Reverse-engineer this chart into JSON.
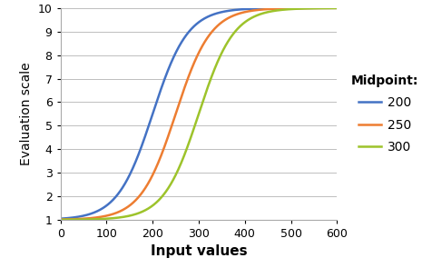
{
  "title": "",
  "xlabel": "Input values",
  "ylabel": "Evaluation scale",
  "xlim": [
    0,
    600
  ],
  "ylim": [
    1,
    10
  ],
  "xticks": [
    0,
    100,
    200,
    300,
    400,
    500,
    600
  ],
  "yticks": [
    1,
    2,
    3,
    4,
    5,
    6,
    7,
    8,
    9,
    10
  ],
  "curves": [
    {
      "midpoint": 200,
      "color": "#4472C4",
      "label": "200"
    },
    {
      "midpoint": 250,
      "color": "#ED7D31",
      "label": "250"
    },
    {
      "midpoint": 300,
      "color": "#9DC32B",
      "label": "300"
    }
  ],
  "legend_title": "Midpoint:",
  "scale_min": 1,
  "scale_max": 10,
  "spread": 38,
  "background_color": "#FFFFFF",
  "grid_color": "#BFBFBF",
  "xlabel_fontsize": 11,
  "ylabel_fontsize": 10,
  "legend_fontsize": 10,
  "legend_title_fontsize": 10,
  "tick_fontsize": 9,
  "linewidth": 1.8
}
